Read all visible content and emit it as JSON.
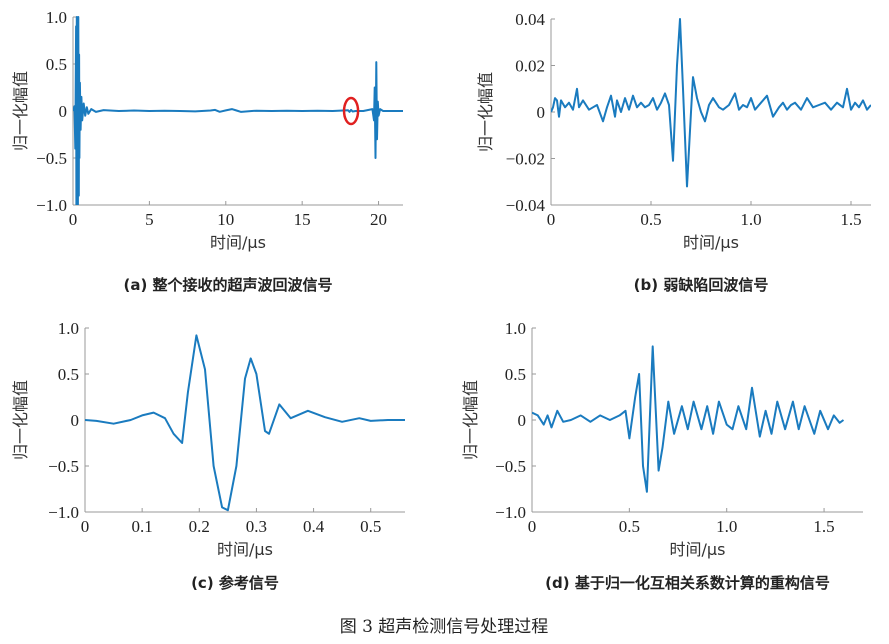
{
  "figure_caption": "图 3   超声检测信号处理过程",
  "colors": {
    "line": "#1a7bbf",
    "axis": "#999999",
    "marker": "#e02020"
  },
  "chart_data": [
    {
      "type": "line",
      "caption": "(a) 整个接收的超声波回波信号",
      "xlabel": "时间/μs",
      "ylabel": "归一化幅值",
      "xlim": [
        0,
        21.6
      ],
      "ylim": [
        -1.0,
        1.0
      ],
      "xticks": [
        0,
        5,
        10,
        15,
        20
      ],
      "xtick_labels": [
        "0",
        "5",
        "10",
        "15",
        "20"
      ],
      "yticks": [
        -1.0,
        -0.5,
        0,
        0.5,
        1.0
      ],
      "ytick_labels": [
        "−1.0",
        "−0.5",
        "0",
        "0.5",
        "1.0"
      ],
      "annotation": {
        "type": "circle",
        "x": 18.2,
        "y": 0
      },
      "x": [
        0,
        0.1,
        0.15,
        0.2,
        0.22,
        0.25,
        0.28,
        0.3,
        0.32,
        0.35,
        0.38,
        0.4,
        0.42,
        0.45,
        0.5,
        0.55,
        0.6,
        0.7,
        0.8,
        0.9,
        1.0,
        1.2,
        1.5,
        2,
        3,
        4,
        5,
        6,
        7,
        8,
        9,
        9.3,
        9.6,
        10,
        10.4,
        10.7,
        11,
        12,
        13,
        14,
        15,
        16,
        17,
        18,
        18.1,
        18.2,
        18.3,
        18.5,
        19,
        19.6,
        19.7,
        19.75,
        19.8,
        19.85,
        19.9,
        19.95,
        20,
        20.1,
        20.3,
        21,
        21.6
      ],
      "y": [
        0,
        0.05,
        -0.4,
        0.9,
        -1.0,
        1.0,
        -1.0,
        0.95,
        -1.0,
        1.0,
        -0.9,
        0.6,
        -0.5,
        0.3,
        -0.2,
        0.15,
        -0.1,
        0.08,
        -0.05,
        0.04,
        -0.03,
        0.02,
        -0.01,
        0.01,
        0,
        0.005,
        0,
        0.003,
        0,
        -0.004,
        0.005,
        0.012,
        -0.008,
        0.006,
        0.02,
        0.005,
        -0.01,
        0.003,
        0,
        0.002,
        0,
        0.003,
        0,
        0.008,
        -0.01,
        0.012,
        -0.005,
        0,
        0,
        0.02,
        -0.1,
        0.25,
        -0.5,
        0.52,
        -0.3,
        0.1,
        -0.05,
        0.02,
        0,
        0,
        0
      ]
    },
    {
      "type": "line",
      "caption": "(b) 弱缺陷回波信号",
      "xlabel": "时间/μs",
      "ylabel": "归一化幅值",
      "xlim": [
        0,
        1.6
      ],
      "ylim": [
        -0.04,
        0.04
      ],
      "xticks": [
        0,
        0.5,
        1.0,
        1.5
      ],
      "xtick_labels": [
        "0",
        "0.5",
        "1.0",
        "1.5"
      ],
      "yticks": [
        -0.04,
        -0.02,
        0,
        0.02,
        0.04
      ],
      "ytick_labels": [
        "−0.04",
        "−0.02",
        "0",
        "0.02",
        "0.04"
      ],
      "x": [
        0,
        0.01,
        0.02,
        0.03,
        0.04,
        0.05,
        0.07,
        0.09,
        0.11,
        0.13,
        0.14,
        0.16,
        0.19,
        0.21,
        0.23,
        0.26,
        0.28,
        0.3,
        0.32,
        0.33,
        0.35,
        0.37,
        0.39,
        0.41,
        0.43,
        0.45,
        0.47,
        0.49,
        0.51,
        0.53,
        0.55,
        0.57,
        0.59,
        0.61,
        0.63,
        0.645,
        0.66,
        0.68,
        0.7,
        0.71,
        0.73,
        0.75,
        0.77,
        0.79,
        0.81,
        0.84,
        0.86,
        0.89,
        0.92,
        0.94,
        0.96,
        0.98,
        1.0,
        1.02,
        1.05,
        1.08,
        1.11,
        1.14,
        1.16,
        1.18,
        1.2,
        1.22,
        1.25,
        1.28,
        1.31,
        1.34,
        1.37,
        1.4,
        1.43,
        1.46,
        1.48,
        1.5,
        1.52,
        1.54,
        1.56,
        1.58,
        1.6
      ],
      "y": [
        0,
        0.002,
        0.006,
        0.005,
        -0.002,
        0.005,
        0.002,
        0.004,
        0.001,
        0.01,
        0.002,
        0.005,
        0.001,
        0.002,
        0.003,
        -0.004,
        0.002,
        0.007,
        -0.002,
        0.005,
        0.0,
        0.006,
        0.001,
        0.007,
        0.002,
        0.004,
        0.002,
        0.003,
        0.006,
        0.001,
        0.004,
        0.008,
        0.003,
        -0.021,
        0.02,
        0.04,
        0.01,
        -0.032,
        0.0,
        0.015,
        0.006,
        0.0,
        -0.004,
        0.003,
        0.006,
        0.002,
        0.001,
        0.003,
        0.008,
        0.001,
        0.003,
        0.002,
        0.006,
        0.001,
        0.004,
        0.007,
        -0.002,
        0.002,
        0.004,
        0.001,
        0.003,
        0.004,
        0.001,
        0.006,
        0.002,
        0.003,
        0.004,
        0.001,
        0.004,
        0.002,
        0.01,
        0.001,
        0.004,
        0.002,
        0.005,
        0.001,
        0.003
      ]
    },
    {
      "type": "line",
      "caption": "(c) 参考信号",
      "xlabel": "时间/μs",
      "ylabel": "归一化幅值",
      "xlim": [
        0,
        0.56
      ],
      "ylim": [
        -1.0,
        1.0
      ],
      "xticks": [
        0,
        0.1,
        0.2,
        0.3,
        0.4,
        0.5
      ],
      "xtick_labels": [
        "0",
        "0.1",
        "0.2",
        "0.3",
        "0.4",
        "0.5"
      ],
      "yticks": [
        -1.0,
        -0.5,
        0,
        0.5,
        1.0
      ],
      "ytick_labels": [
        "−1.0",
        "−0.5",
        "0",
        "0.5",
        "1.0"
      ],
      "x": [
        0,
        0.02,
        0.05,
        0.08,
        0.1,
        0.12,
        0.14,
        0.155,
        0.17,
        0.18,
        0.195,
        0.21,
        0.225,
        0.24,
        0.25,
        0.265,
        0.28,
        0.29,
        0.3,
        0.315,
        0.322,
        0.34,
        0.36,
        0.39,
        0.42,
        0.45,
        0.48,
        0.5,
        0.53,
        0.56
      ],
      "y": [
        0,
        -0.01,
        -0.04,
        0,
        0.05,
        0.08,
        0.02,
        -0.15,
        -0.25,
        0.3,
        0.92,
        0.55,
        -0.5,
        -0.95,
        -0.98,
        -0.5,
        0.45,
        0.67,
        0.5,
        -0.12,
        -0.15,
        0.17,
        0.02,
        0.1,
        0.03,
        -0.02,
        0.02,
        -0.01,
        0,
        0
      ]
    },
    {
      "type": "line",
      "caption": "(d) 基于归一化互相关系数计算的重构信号",
      "xlabel": "时间/μs",
      "ylabel": "归一化幅值",
      "xlim": [
        0,
        1.7
      ],
      "ylim": [
        -1.0,
        1.0
      ],
      "xticks": [
        0,
        0.5,
        1.0,
        1.5
      ],
      "xtick_labels": [
        "0",
        "0.5",
        "1.0",
        "1.5"
      ],
      "yticks": [
        -1.0,
        -0.5,
        0,
        0.5,
        1.0
      ],
      "ytick_labels": [
        "−1.0",
        "−0.5",
        "0",
        "0.5",
        "1.0"
      ],
      "x": [
        0,
        0.03,
        0.06,
        0.08,
        0.1,
        0.13,
        0.16,
        0.2,
        0.25,
        0.3,
        0.35,
        0.4,
        0.45,
        0.48,
        0.5,
        0.53,
        0.55,
        0.57,
        0.59,
        0.62,
        0.65,
        0.67,
        0.7,
        0.73,
        0.77,
        0.8,
        0.83,
        0.87,
        0.9,
        0.93,
        0.96,
        1.0,
        1.03,
        1.06,
        1.1,
        1.13,
        1.17,
        1.2,
        1.23,
        1.26,
        1.3,
        1.34,
        1.37,
        1.4,
        1.45,
        1.48,
        1.52,
        1.55,
        1.58,
        1.6
      ],
      "y": [
        0.08,
        0.05,
        -0.05,
        0.05,
        -0.08,
        0.1,
        -0.02,
        0,
        0.05,
        -0.02,
        0.05,
        0,
        0.05,
        0.1,
        -0.2,
        0.25,
        0.5,
        -0.5,
        -0.78,
        0.8,
        -0.55,
        -0.3,
        0.2,
        -0.15,
        0.15,
        -0.1,
        0.2,
        -0.1,
        0.15,
        -0.15,
        0.2,
        -0.05,
        -0.1,
        0.15,
        -0.1,
        0.35,
        -0.18,
        0.1,
        -0.15,
        0.2,
        -0.1,
        0.2,
        -0.1,
        0.15,
        -0.15,
        0.1,
        -0.1,
        0.05,
        -0.03,
        0
      ]
    }
  ]
}
